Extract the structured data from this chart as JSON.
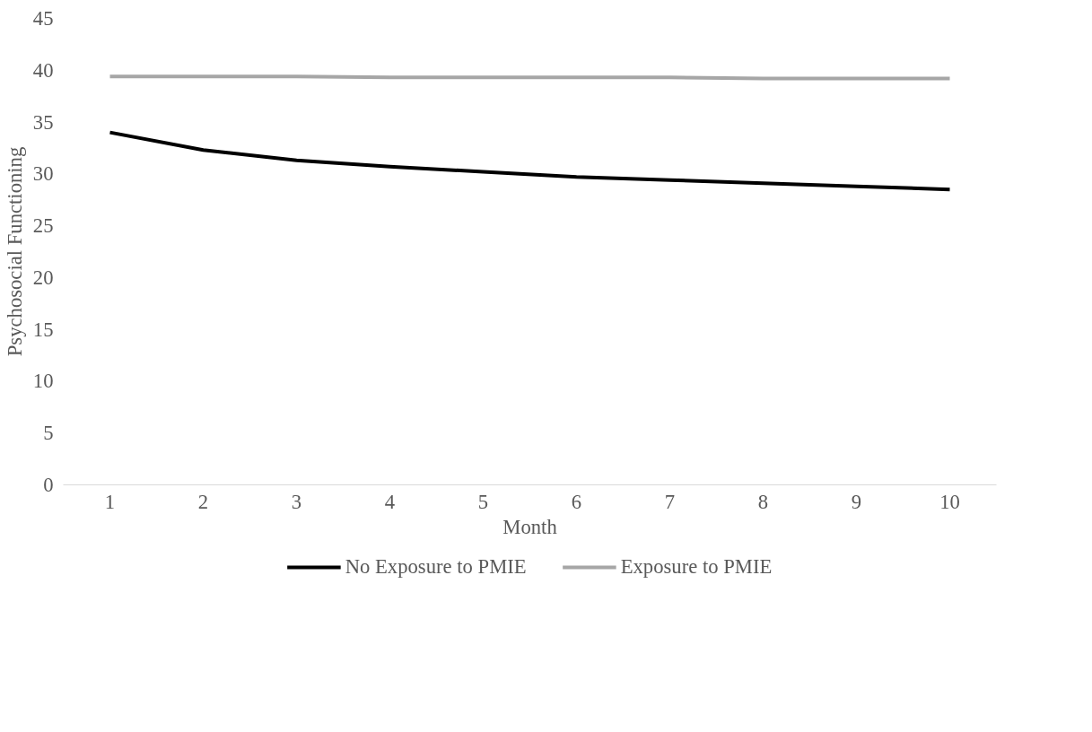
{
  "chart_data": {
    "type": "line",
    "xlabel": "Month",
    "ylabel": "Psychosocial Functioning",
    "categories": [
      "1",
      "2",
      "3",
      "4",
      "5",
      "6",
      "7",
      "8",
      "9",
      "10"
    ],
    "series": [
      {
        "name": "No Exposure to PMIE",
        "color": "#000000",
        "values": [
          34.0,
          32.3,
          31.3,
          30.7,
          30.2,
          29.7,
          29.4,
          29.1,
          28.8,
          28.5
        ]
      },
      {
        "name": "Exposure to PMIE",
        "color": "#a6a6a6",
        "values": [
          39.4,
          39.4,
          39.4,
          39.3,
          39.3,
          39.3,
          39.3,
          39.2,
          39.2,
          39.2
        ]
      }
    ],
    "ylim": [
      0,
      45
    ],
    "yticks": [
      0,
      5,
      10,
      15,
      20,
      25,
      30,
      35,
      40,
      45
    ],
    "grid": false,
    "legend": "bottom",
    "marker": "none",
    "line_style": "solid"
  }
}
